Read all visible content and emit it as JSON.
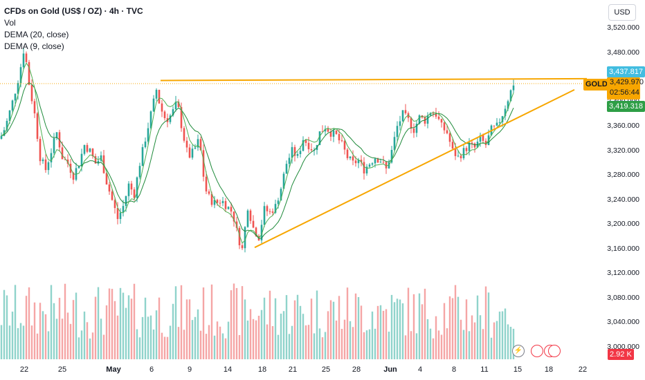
{
  "legend": {
    "title": "CFDs on Gold (US$ / OZ) · 4h · TVC",
    "vol": "Vol",
    "dema20": "DEMA (20, close)",
    "dema9": "DEMA (9, close)"
  },
  "price_axis": {
    "currency": "USD",
    "symbol_tag": "GOLD",
    "price_tags": {
      "top": "3,437.817",
      "last": "3,429.970",
      "countdown": "02:56:44",
      "dema": "3,419.318",
      "volume": "2.92 K"
    }
  },
  "colors": {
    "up": "#26a69a",
    "down": "#ef5350",
    "vol_up": "#8fd3cb",
    "vol_down": "#f5a5a5",
    "trendline": "#f7a600",
    "dema_slow": "#1e8a3a",
    "dema_fast": "#4caf50",
    "tag_blue": "#42bde0",
    "tag_green": "#2e9e46",
    "tag_red": "#f23645"
  },
  "icons": [
    "flash-icon",
    "us-flag-icon",
    "us-flag-icon",
    "us-flag-icon"
  ],
  "chart_data": {
    "type": "candlestick",
    "title": "CFDs on Gold (US$ / OZ) · 4h · TVC",
    "ylim": [
      2990,
      3560
    ],
    "y_ticks": [
      "3,520.000",
      "3,480.000",
      "3,440.000",
      "3,400.000",
      "3,360.000",
      "3,320.000",
      "3,280.000",
      "3,240.000",
      "3,200.000",
      "3,160.000",
      "3,120.000",
      "3,080.000",
      "3,040.000",
      "3,000.000"
    ],
    "x_ticks": [
      {
        "label": "22",
        "x": 35,
        "bold": false
      },
      {
        "label": "25",
        "x": 90,
        "bold": false
      },
      {
        "label": "May",
        "x": 164,
        "bold": true
      },
      {
        "label": "6",
        "x": 219,
        "bold": false
      },
      {
        "label": "9",
        "x": 274,
        "bold": false
      },
      {
        "label": "14",
        "x": 329,
        "bold": false
      },
      {
        "label": "18",
        "x": 379,
        "bold": false
      },
      {
        "label": "21",
        "x": 423,
        "bold": false
      },
      {
        "label": "25",
        "x": 471,
        "bold": false
      },
      {
        "label": "28",
        "x": 515,
        "bold": false
      },
      {
        "label": "Jun",
        "x": 564,
        "bold": true
      },
      {
        "label": "4",
        "x": 607,
        "bold": false
      },
      {
        "label": "8",
        "x": 656,
        "bold": false
      },
      {
        "label": "11",
        "x": 700,
        "bold": false
      },
      {
        "label": "15",
        "x": 748,
        "bold": false
      },
      {
        "label": "18",
        "x": 793,
        "bold": false
      },
      {
        "label": "22",
        "x": 842,
        "bold": false
      }
    ],
    "close_path": [
      [
        0,
        3340
      ],
      [
        8,
        3360
      ],
      [
        18,
        3400
      ],
      [
        28,
        3445
      ],
      [
        35,
        3490
      ],
      [
        42,
        3430
      ],
      [
        50,
        3380
      ],
      [
        58,
        3310
      ],
      [
        66,
        3290
      ],
      [
        74,
        3320
      ],
      [
        82,
        3350
      ],
      [
        90,
        3310
      ],
      [
        98,
        3300
      ],
      [
        106,
        3280
      ],
      [
        114,
        3300
      ],
      [
        122,
        3330
      ],
      [
        130,
        3320
      ],
      [
        138,
        3300
      ],
      [
        146,
        3310
      ],
      [
        154,
        3270
      ],
      [
        162,
        3240
      ],
      [
        170,
        3210
      ],
      [
        178,
        3230
      ],
      [
        186,
        3265
      ],
      [
        194,
        3250
      ],
      [
        202,
        3300
      ],
      [
        210,
        3340
      ],
      [
        218,
        3380
      ],
      [
        226,
        3420
      ],
      [
        232,
        3390
      ],
      [
        240,
        3370
      ],
      [
        248,
        3380
      ],
      [
        256,
        3400
      ],
      [
        264,
        3350
      ],
      [
        272,
        3310
      ],
      [
        280,
        3320
      ],
      [
        288,
        3340
      ],
      [
        296,
        3260
      ],
      [
        304,
        3240
      ],
      [
        312,
        3235
      ],
      [
        320,
        3240
      ],
      [
        328,
        3230
      ],
      [
        336,
        3220
      ],
      [
        344,
        3180
      ],
      [
        350,
        3160
      ],
      [
        358,
        3230
      ],
      [
        366,
        3195
      ],
      [
        374,
        3180
      ],
      [
        382,
        3225
      ],
      [
        390,
        3220
      ],
      [
        398,
        3230
      ],
      [
        406,
        3260
      ],
      [
        414,
        3300
      ],
      [
        422,
        3320
      ],
      [
        430,
        3310
      ],
      [
        438,
        3340
      ],
      [
        446,
        3330
      ],
      [
        454,
        3320
      ],
      [
        462,
        3350
      ],
      [
        470,
        3360
      ],
      [
        478,
        3350
      ],
      [
        486,
        3345
      ],
      [
        494,
        3330
      ],
      [
        502,
        3310
      ],
      [
        510,
        3300
      ],
      [
        518,
        3305
      ],
      [
        526,
        3290
      ],
      [
        534,
        3300
      ],
      [
        542,
        3310
      ],
      [
        550,
        3305
      ],
      [
        558,
        3290
      ],
      [
        566,
        3320
      ],
      [
        574,
        3360
      ],
      [
        582,
        3380
      ],
      [
        590,
        3370
      ],
      [
        598,
        3355
      ],
      [
        606,
        3375
      ],
      [
        614,
        3370
      ],
      [
        622,
        3385
      ],
      [
        630,
        3380
      ],
      [
        638,
        3360
      ],
      [
        646,
        3350
      ],
      [
        654,
        3320
      ],
      [
        662,
        3310
      ],
      [
        670,
        3320
      ],
      [
        678,
        3330
      ],
      [
        686,
        3325
      ],
      [
        694,
        3340
      ],
      [
        702,
        3330
      ],
      [
        710,
        3355
      ],
      [
        718,
        3360
      ],
      [
        726,
        3380
      ],
      [
        734,
        3405
      ],
      [
        742,
        3430
      ]
    ],
    "trendlines": [
      {
        "from": [
          232,
          3435
        ],
        "to": [
          848,
          3438
        ]
      },
      {
        "from": [
          368,
          3163
        ],
        "to": [
          830,
          3420
        ]
      }
    ],
    "last_price": 3429.97
  }
}
